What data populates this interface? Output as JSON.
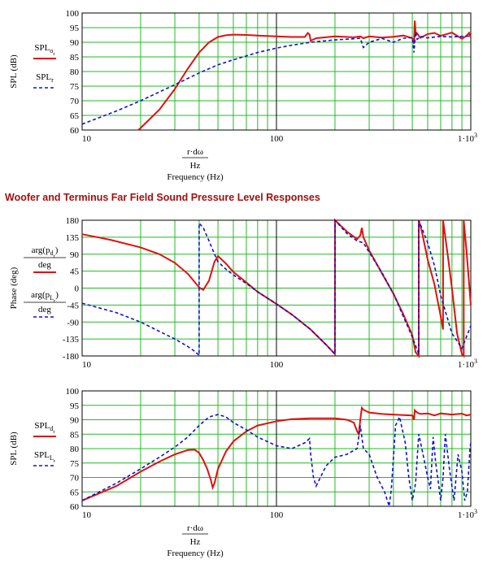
{
  "heading": "Woofer and Terminus Far Field Sound Pressure Level Responses",
  "colors": {
    "red": "#e01010",
    "blue": "#1010d0",
    "grid": "#22bb22"
  },
  "chart_data": [
    {
      "type": "line",
      "xscale": "log",
      "xlim": [
        10,
        1000
      ],
      "ylim": [
        60,
        100
      ],
      "xticks": [
        "10",
        "100",
        "1·10³"
      ],
      "yticks": [
        "60",
        "65",
        "70",
        "75",
        "80",
        "85",
        "90",
        "95",
        "100"
      ],
      "ylabel": "SPL (dB)",
      "xexpr": {
        "numerator": "r·dω",
        "denominator": "Hz"
      },
      "xlabel": "Frequency (Hz)",
      "grid": true,
      "legend": "left",
      "series": [
        {
          "name": "SPL_o_r",
          "name_main": "SPL",
          "name_sub": "o",
          "name_subsub": "r",
          "color": "#e01010",
          "style": "solid",
          "x": [
            19.5,
            25,
            30,
            35,
            40,
            45,
            50,
            55,
            60,
            70,
            80,
            100,
            120,
            140,
            145,
            148,
            150,
            160,
            200,
            250,
            270,
            280,
            300,
            350,
            400,
            450,
            500,
            510,
            515,
            520,
            530,
            550,
            600,
            650,
            700,
            800,
            900,
            950,
            980,
            1000
          ],
          "y": [
            60,
            67,
            74,
            81,
            86.5,
            90,
            91.8,
            92.4,
            92.6,
            92.5,
            92.3,
            92.0,
            91.8,
            91.8,
            93.2,
            92.6,
            90.5,
            91.4,
            92.0,
            91.7,
            92.0,
            91.4,
            92.0,
            91.6,
            91.9,
            92.3,
            91.4,
            89.5,
            97.4,
            93.5,
            93.0,
            91.5,
            92.8,
            93.2,
            92.2,
            93.3,
            91.2,
            92.2,
            93.2,
            91.5
          ]
        },
        {
          "name": "SPL_r",
          "name_main": "SPL",
          "name_sub": "r",
          "name_subsub": "",
          "color": "#1010d0",
          "style": "dashed",
          "x": [
            10,
            15,
            20,
            30,
            40,
            50,
            60,
            80,
            100,
            120,
            150,
            200,
            250,
            270,
            280,
            300,
            350,
            400,
            450,
            500,
            510,
            520,
            530,
            550,
            600,
            700,
            800,
            900,
            1000
          ],
          "y": [
            62,
            66.5,
            70,
            75.5,
            79.5,
            82.3,
            84,
            86.5,
            88.0,
            89.0,
            90.0,
            90.8,
            91.2,
            91.4,
            88.2,
            90.0,
            91.3,
            90.0,
            91.4,
            91.6,
            86.5,
            93.5,
            91.0,
            92.0,
            91.5,
            92.0,
            91.8,
            92.0,
            92.1
          ]
        }
      ]
    },
    {
      "type": "line",
      "xscale": "log",
      "xlim": [
        10,
        1000
      ],
      "ylim": [
        -180,
        180
      ],
      "xticks": [
        "10",
        "100",
        "1·10³"
      ],
      "yticks": [
        "-180",
        "-135",
        "-90",
        "-45",
        "0",
        "45",
        "90",
        "135",
        "180"
      ],
      "ylabel": "Phase (deg)",
      "xexpr": null,
      "xlabel": "",
      "grid": true,
      "legend": "left",
      "series": [
        {
          "name": "arg(p_d_r)/deg",
          "name_main": "p",
          "name_sub": "d",
          "name_subsub": "r",
          "color": "#e01010",
          "style": "solid",
          "x": [
            10,
            14,
            20,
            25,
            30,
            35,
            40,
            42,
            45,
            48,
            50,
            55,
            60,
            70,
            80,
            100,
            120,
            150,
            180,
            200,
            200.01,
            230,
            260,
            270,
            275,
            280,
            300,
            350,
            400,
            450,
            500,
            520,
            540,
            540.01,
            560,
            600,
            650,
            700,
            720,
            720.01,
            760,
            800,
            850,
            900,
            920,
            920.01,
            950,
            1000
          ],
          "y": [
            143,
            128,
            108,
            90,
            67,
            38,
            2,
            -5,
            20,
            70,
            85,
            65,
            43,
            15,
            -10,
            -42,
            -70,
            -110,
            -150,
            -175,
            180,
            150,
            130,
            140,
            160,
            135,
            100,
            38,
            -15,
            -70,
            -125,
            -170,
            -180,
            180,
            150,
            75,
            10,
            -75,
            -110,
            180,
            90,
            0,
            -120,
            -175,
            -180,
            180,
            100,
            -45
          ]
        },
        {
          "name": "arg(p_L_r)/deg",
          "name_main": "p",
          "name_sub": "L",
          "name_subsub": "r",
          "color": "#1010d0",
          "style": "dashed",
          "x": [
            10,
            15,
            20,
            25,
            30,
            35,
            38,
            40,
            40.01,
            42,
            45,
            48,
            50,
            55,
            60,
            70,
            80,
            100,
            120,
            150,
            180,
            200,
            200.01,
            230,
            260,
            280,
            300,
            350,
            400,
            500,
            540,
            540.01,
            600,
            650,
            700,
            800,
            900,
            1000
          ],
          "y": [
            -40,
            -65,
            -90,
            -115,
            -135,
            -155,
            -168,
            -178,
            172,
            160,
            125,
            90,
            70,
            50,
            35,
            12,
            -10,
            -42,
            -70,
            -110,
            -150,
            -175,
            180,
            145,
            125,
            120,
            95,
            40,
            -15,
            -130,
            -175,
            180,
            120,
            60,
            -20,
            -120,
            -160,
            -100
          ]
        }
      ]
    },
    {
      "type": "line",
      "xscale": "log",
      "xlim": [
        10,
        1000
      ],
      "ylim": [
        60,
        100
      ],
      "xticks": [
        "10",
        "100",
        "1·10³"
      ],
      "yticks": [
        "60",
        "65",
        "70",
        "75",
        "80",
        "85",
        "90",
        "95",
        "100"
      ],
      "ylabel": "SPL (dB)",
      "xexpr": {
        "numerator": "r·dω",
        "denominator": "Hz"
      },
      "xlabel": "Frequency (Hz)",
      "grid": true,
      "legend": "left",
      "series": [
        {
          "name": "SPL_d_r",
          "name_main": "SPL",
          "name_sub": "d",
          "name_subsub": "r",
          "color": "#e01010",
          "style": "solid",
          "x": [
            10,
            15,
            20,
            25,
            30,
            35,
            38,
            40,
            42,
            44,
            46,
            47,
            48,
            50,
            55,
            60,
            70,
            80,
            100,
            120,
            150,
            200,
            230,
            250,
            260,
            265,
            270,
            275,
            280,
            300,
            350,
            400,
            450,
            500,
            510,
            515,
            520,
            530,
            550,
            600,
            650,
            700,
            800,
            900,
            950,
            1000
          ],
          "y": [
            62,
            67,
            72,
            75.5,
            78,
            79.5,
            79.6,
            78.5,
            76,
            73,
            69,
            66.5,
            68,
            73,
            79,
            82.5,
            86,
            88,
            89.5,
            90.2,
            90.5,
            90.5,
            90,
            89,
            86,
            85,
            90,
            94.1,
            93.5,
            92.5,
            92.0,
            91.8,
            91.6,
            91.5,
            90.0,
            93.3,
            93.0,
            92.5,
            92.0,
            92.2,
            91.5,
            92.2,
            91.8,
            92.1,
            91.5,
            91.8
          ]
        },
        {
          "name": "SPL_L_r",
          "name_main": "SPL",
          "name_sub": "L",
          "name_subsub": "r",
          "color": "#1010d0",
          "style": "dashed",
          "x": [
            10,
            15,
            20,
            25,
            30,
            35,
            40,
            45,
            50,
            55,
            60,
            70,
            80,
            100,
            120,
            140,
            148,
            150,
            155,
            160,
            180,
            200,
            230,
            260,
            270,
            280,
            300,
            330,
            360,
            380,
            390,
            400,
            410,
            430,
            460,
            480,
            500,
            520,
            540,
            560,
            600,
            620,
            640,
            660,
            700,
            720,
            740,
            780,
            820,
            860,
            900,
            930,
            960,
            990,
            1000
          ],
          "y": [
            62,
            68,
            73,
            77,
            80.5,
            84,
            88,
            91,
            91.8,
            91,
            89,
            86.5,
            84,
            81,
            80,
            82,
            83.5,
            78,
            70,
            67,
            74,
            77,
            78,
            80,
            88,
            80,
            78,
            70,
            65,
            60,
            66,
            77,
            88,
            91,
            82,
            70,
            62,
            68,
            85,
            80,
            70,
            66,
            84,
            75,
            62,
            70,
            85,
            72,
            62,
            78,
            72,
            62,
            65,
            80,
            82
          ]
        }
      ]
    }
  ]
}
